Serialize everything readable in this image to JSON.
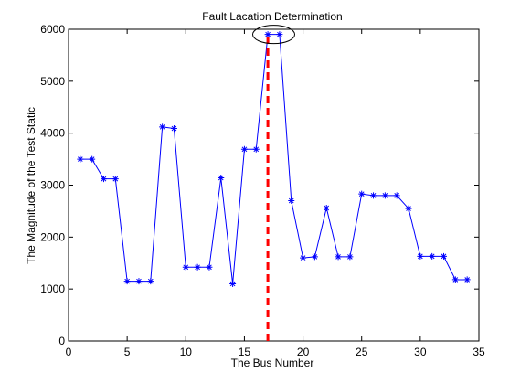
{
  "chart_data": {
    "type": "line",
    "title": "Fault Lacation Determination",
    "xlabel": "The Bus Number",
    "ylabel": "The Magnitude of the Test Static",
    "xlim": [
      0,
      35
    ],
    "ylim": [
      0,
      6000
    ],
    "xticks": [
      0,
      5,
      10,
      15,
      20,
      25,
      30,
      35
    ],
    "yticks": [
      0,
      1000,
      2000,
      3000,
      4000,
      5000,
      6000
    ],
    "grid": false,
    "series": [
      {
        "x": [
          1,
          2,
          3,
          4,
          5,
          6,
          7,
          8,
          9,
          10,
          11,
          12,
          13,
          14,
          15,
          16,
          17,
          18,
          19,
          20,
          21,
          22,
          23,
          24,
          25,
          26,
          27,
          28,
          29,
          30,
          31,
          32,
          33,
          34
        ],
        "y": [
          3500,
          3500,
          3120,
          3120,
          1150,
          1150,
          1150,
          4120,
          4090,
          1420,
          1420,
          1420,
          3140,
          1100,
          3690,
          3690,
          5900,
          5900,
          2700,
          1600,
          1620,
          2560,
          1620,
          1620,
          2830,
          2800,
          2800,
          2800,
          2550,
          1630,
          1630,
          1630,
          1180,
          1180
        ],
        "color": "#0000ff",
        "marker": "asterisk"
      }
    ],
    "fault_line": {
      "x": 17,
      "color": "#ff0000",
      "style": "dashed"
    },
    "highlight_ellipse": {
      "center_x": 17.5,
      "center_y": 5900,
      "color": "#000000"
    }
  }
}
